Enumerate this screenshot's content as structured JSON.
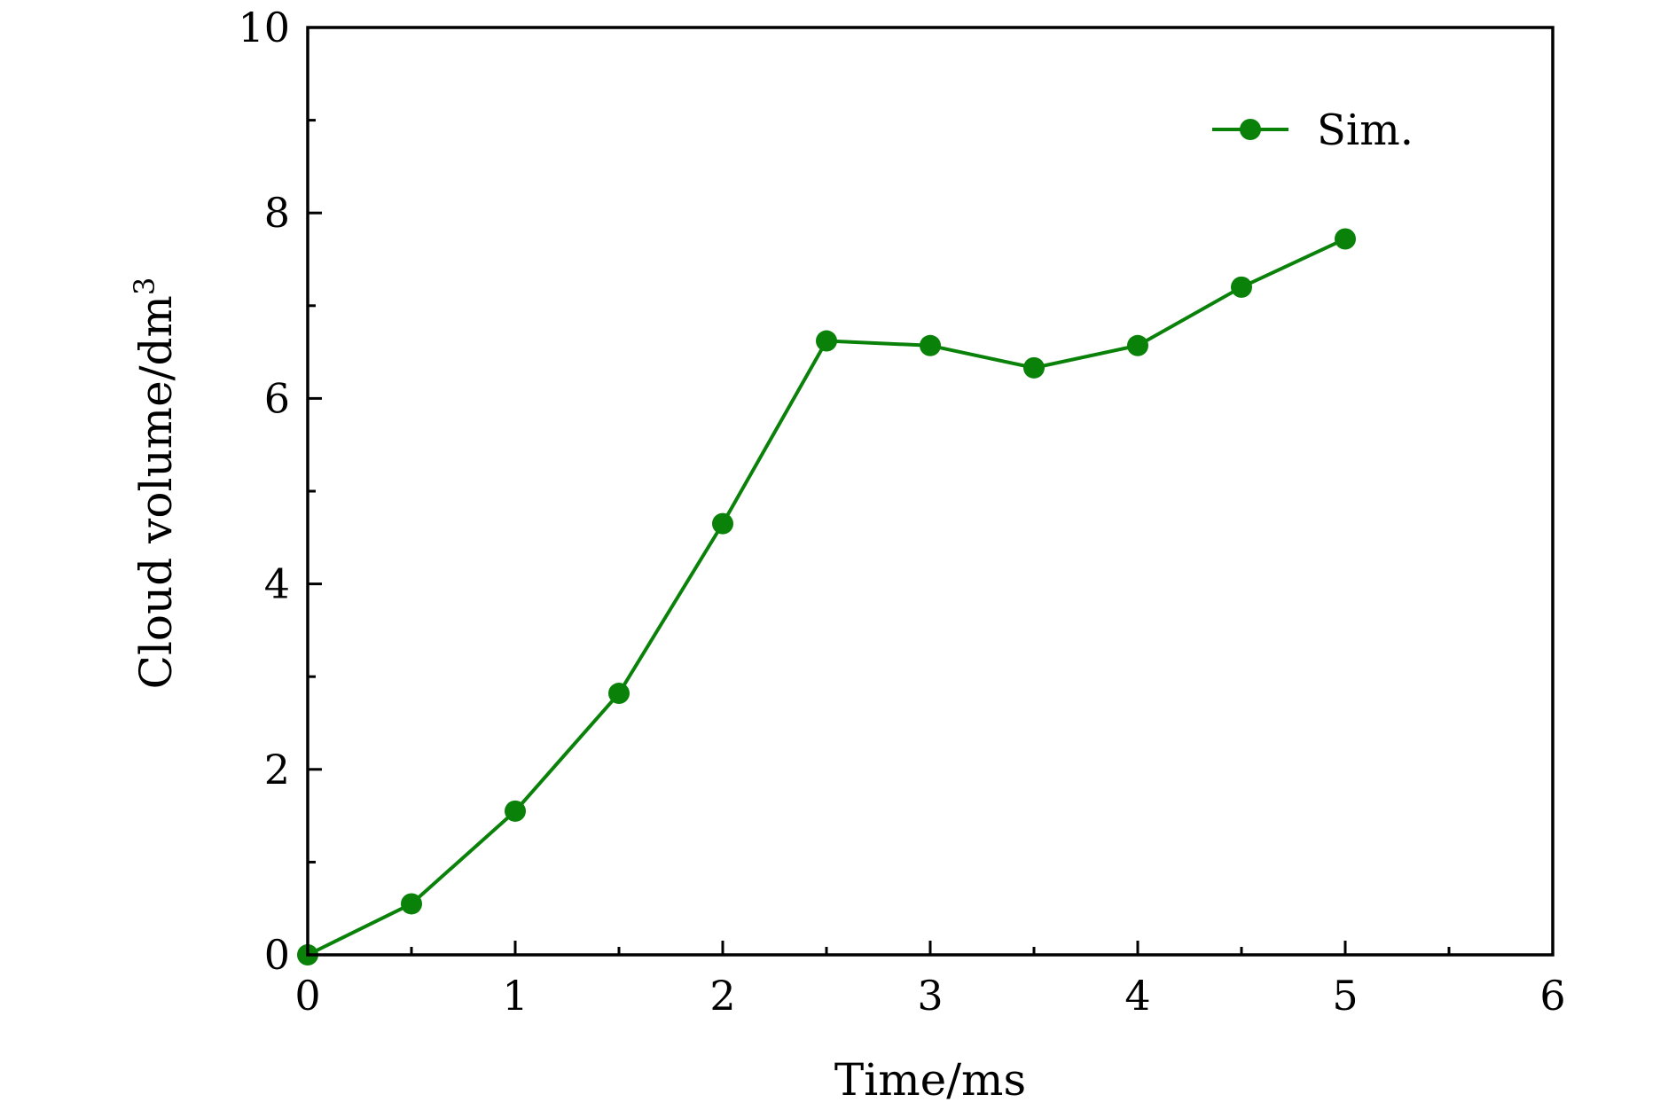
{
  "chart_data": {
    "type": "line",
    "xlabel": "Time/ms",
    "ylabel_text": "Cloud volume/dm",
    "ylabel_sup": "3",
    "xlim": [
      0,
      6
    ],
    "ylim": [
      0,
      10
    ],
    "x_major_ticks": [
      "0",
      "1",
      "2",
      "3",
      "4",
      "5",
      "6"
    ],
    "y_major_ticks": [
      "0",
      "2",
      "4",
      "6",
      "8",
      "10"
    ],
    "grid": false,
    "legend_position": "top-right",
    "series": [
      {
        "name": "Sim.",
        "color": "#0a820a",
        "marker": "circle",
        "x": [
          0,
          0.5,
          1,
          1.5,
          2,
          2.5,
          3,
          3.5,
          4,
          4.5,
          5
        ],
        "y": [
          0.0,
          0.55,
          1.55,
          2.82,
          4.65,
          6.62,
          6.57,
          6.33,
          6.57,
          7.2,
          7.72
        ]
      }
    ]
  }
}
